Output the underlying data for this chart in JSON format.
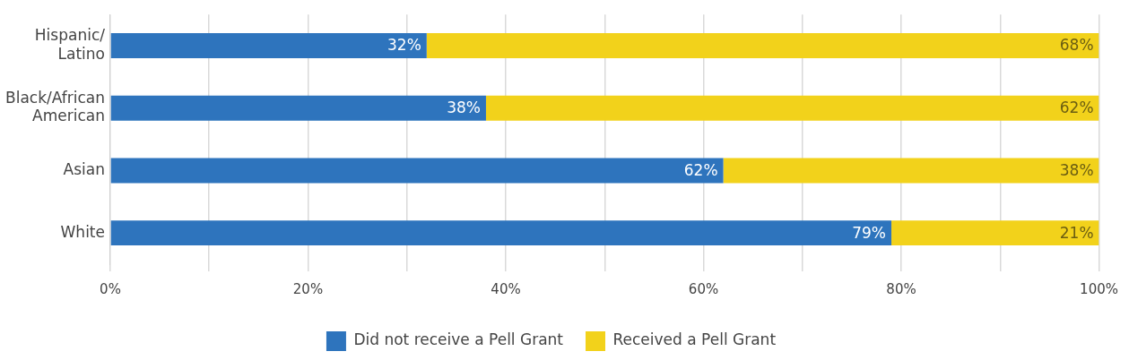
{
  "chart_data": {
    "type": "bar",
    "orientation": "horizontal",
    "stacked": true,
    "categories": [
      "Hispanic/ Latino",
      "Black/African American",
      "Asian",
      "White"
    ],
    "series": [
      {
        "name": "Did not receive a Pell Grant",
        "color": "#2e74bd",
        "values": [
          32,
          38,
          62,
          79
        ],
        "value_labels": [
          "32%",
          "38%",
          "62%",
          "79%"
        ]
      },
      {
        "name": "Received a Pell Grant",
        "color": "#f2d21b",
        "values": [
          68,
          62,
          38,
          21
        ],
        "value_labels": [
          "68%",
          "62%",
          "38%",
          "21%"
        ]
      }
    ],
    "xlim": [
      0,
      100
    ],
    "xticks": [
      {
        "value": 0,
        "label": "0%"
      },
      {
        "value": 10,
        "label": null
      },
      {
        "value": 20,
        "label": "20%"
      },
      {
        "value": 30,
        "label": null
      },
      {
        "value": 40,
        "label": "40%"
      },
      {
        "value": 50,
        "label": null
      },
      {
        "value": 60,
        "label": "60%"
      },
      {
        "value": 70,
        "label": null
      },
      {
        "value": 80,
        "label": "80%"
      },
      {
        "value": 90,
        "label": null
      },
      {
        "value": 100,
        "label": "100%"
      }
    ],
    "grid": "x",
    "legend": "bottom"
  }
}
